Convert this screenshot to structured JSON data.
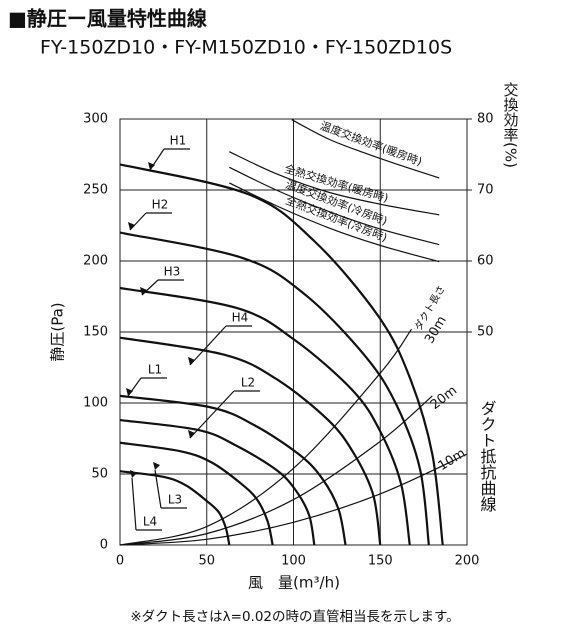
{
  "chart_data": {
    "type": "line",
    "title": "■静圧ー風量特性曲線",
    "subtitle": "FY-150ZD10・FY-M150ZD10・FY-150ZD10S",
    "x_label": "風　量(m³/h)",
    "y_label": "静圧(Pa)",
    "y2_label": "交換効率(%)",
    "duct_annotation": "ダクト抵抗曲線",
    "duct_length_label": "ダクト長さ",
    "footnote": "※ダクト長さはλ=0.02の時の直管相当長を示します。",
    "xlim": [
      0,
      200
    ],
    "xticks": [
      0,
      50,
      100,
      150,
      200
    ],
    "ylim": [
      0,
      300
    ],
    "yticks": [
      0,
      50,
      100,
      150,
      200,
      250,
      300
    ],
    "y2lim": [
      20,
      80
    ],
    "y2ticks": [
      50,
      60,
      70,
      80
    ],
    "grid": true,
    "series": [
      {
        "name": "H1",
        "color": "#111111",
        "x": [
          0,
          74,
          112,
          149,
          167,
          180,
          186
        ],
        "values": [
          268,
          247,
          214,
          161,
          118,
          64,
          0
        ]
      },
      {
        "name": "H2",
        "color": "#111111",
        "x": [
          0,
          71,
          107,
          142,
          160,
          173,
          178
        ],
        "values": [
          220,
          202,
          176,
          132,
          97,
          53,
          0
        ]
      },
      {
        "name": "H3",
        "color": "#111111",
        "x": [
          0,
          67,
          100,
          134,
          150,
          162,
          167
        ],
        "values": [
          181,
          167,
          145,
          109,
          80,
          43,
          0
        ]
      },
      {
        "name": "H4",
        "color": "#111111",
        "x": [
          0,
          60,
          90,
          120,
          135,
          146,
          150
        ],
        "values": [
          146,
          134,
          117,
          88,
          64,
          35,
          0
        ]
      },
      {
        "name": "L1",
        "color": "#111111",
        "x": [
          0,
          52,
          78,
          104,
          117,
          126,
          130
        ],
        "values": [
          105,
          97,
          84,
          63,
          46,
          25,
          0
        ]
      },
      {
        "name": "L2",
        "color": "#111111",
        "x": [
          0,
          45,
          67,
          90,
          101,
          109,
          112
        ],
        "values": [
          88,
          81,
          70,
          53,
          39,
          21,
          0
        ]
      },
      {
        "name": "L3",
        "color": "#111111",
        "x": [
          0,
          35,
          53,
          70,
          79,
          85,
          88
        ],
        "values": [
          72,
          66,
          58,
          43,
          32,
          17,
          0
        ]
      },
      {
        "name": "L4",
        "color": "#111111",
        "x": [
          0,
          25,
          38,
          50,
          57,
          61,
          63
        ],
        "values": [
          52,
          48,
          42,
          31,
          23,
          12,
          0
        ]
      },
      {
        "name": "10m",
        "color": "#111111",
        "x": [
          0,
          50,
          100,
          150,
          200
        ],
        "values": [
          0,
          4,
          16,
          36,
          64
        ]
      },
      {
        "name": "20m",
        "color": "#111111",
        "x": [
          0,
          50,
          100,
          150,
          180
        ],
        "values": [
          0,
          8,
          32,
          73,
          105
        ]
      },
      {
        "name": "30m",
        "color": "#111111",
        "x": [
          0,
          50,
          100,
          150,
          168
        ],
        "values": [
          0,
          13,
          54,
          121,
          152
        ]
      },
      {
        "name": "温度交換効率(暖房時)",
        "color": "#111111",
        "axis": "y2",
        "x": [
          99,
          120,
          140,
          160,
          184
        ],
        "values": [
          79.9,
          77.2,
          75.3,
          73.6,
          71.7
        ]
      },
      {
        "name": "全熱交換効率(暖房時)",
        "color": "#111111",
        "axis": "y2",
        "x": [
          63,
          90,
          120,
          150,
          184
        ],
        "values": [
          75.4,
          72.3,
          69.7,
          68,
          66.5
        ]
      },
      {
        "name": "温度交換効率(冷房時)",
        "color": "#111111",
        "axis": "y2",
        "x": [
          63,
          90,
          120,
          150,
          184
        ],
        "values": [
          73.2,
          70,
          67,
          64.5,
          62.3
        ]
      },
      {
        "name": "全熱交換効率(冷房時)",
        "color": "#111111",
        "axis": "y2",
        "x": [
          63,
          90,
          120,
          150,
          184
        ],
        "values": [
          71,
          67.8,
          64.7,
          62.2,
          59.9
        ]
      }
    ]
  }
}
